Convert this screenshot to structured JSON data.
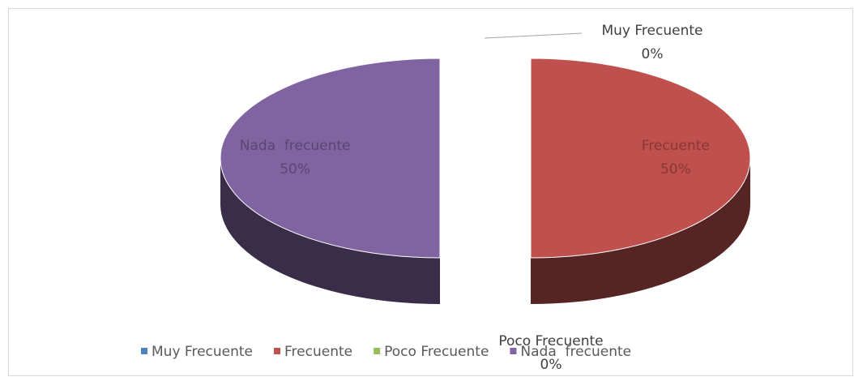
{
  "chart_data": {
    "type": "pie",
    "categories": [
      "Muy Frecuente",
      "Frecuente",
      "Poco Frecuente",
      "Nada  frecuente"
    ],
    "values": [
      0,
      50,
      0,
      50
    ],
    "value_labels": [
      "0%",
      "50%",
      "0%",
      "50%"
    ],
    "colors": [
      "#4f81bd",
      "#c0504d",
      "#9bbb59",
      "#8064a2"
    ],
    "legend": "bottom"
  }
}
